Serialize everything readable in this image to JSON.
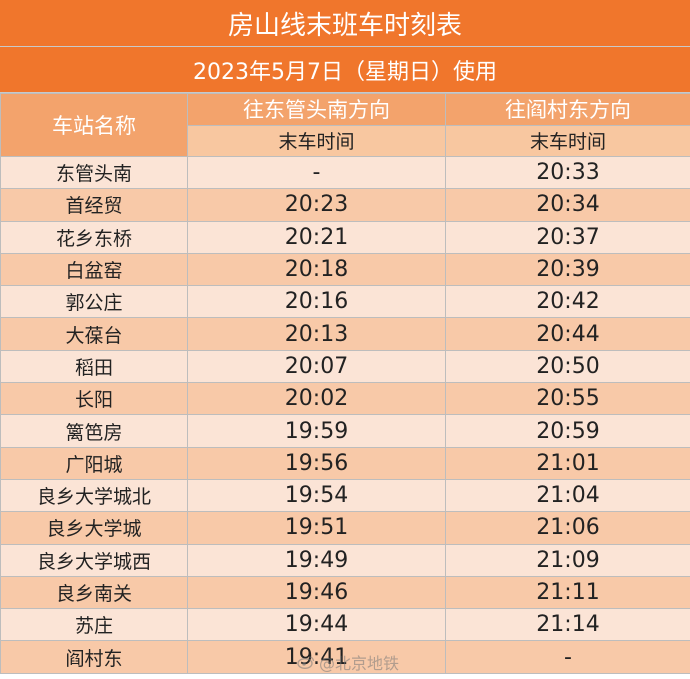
{
  "title": "房山线末班车时刻表",
  "subtitle": "2023年5月7日（星期日）使用",
  "header": {
    "station_col": "车站名称",
    "dir1": "往东管头南方向",
    "dir2": "往阎村东方向",
    "sub1": "末车时间",
    "sub2": "末车时间"
  },
  "rows": [
    {
      "station": "东管头南",
      "t1": "-",
      "t2": "20:33"
    },
    {
      "station": "首经贸",
      "t1": "20:23",
      "t2": "20:34"
    },
    {
      "station": "花乡东桥",
      "t1": "20:21",
      "t2": "20:37"
    },
    {
      "station": "白盆窑",
      "t1": "20:18",
      "t2": "20:39"
    },
    {
      "station": "郭公庄",
      "t1": "20:16",
      "t2": "20:42"
    },
    {
      "station": "大葆台",
      "t1": "20:13",
      "t2": "20:44"
    },
    {
      "station": "稻田",
      "t1": "20:07",
      "t2": "20:50"
    },
    {
      "station": "长阳",
      "t1": "20:02",
      "t2": "20:55"
    },
    {
      "station": "篱笆房",
      "t1": "19:59",
      "t2": "20:59"
    },
    {
      "station": "广阳城",
      "t1": "19:56",
      "t2": "21:01"
    },
    {
      "station": "良乡大学城北",
      "t1": "19:54",
      "t2": "21:04"
    },
    {
      "station": "良乡大学城",
      "t1": "19:51",
      "t2": "21:06"
    },
    {
      "station": "良乡大学城西",
      "t1": "19:49",
      "t2": "21:09"
    },
    {
      "station": "良乡南关",
      "t1": "19:46",
      "t2": "21:11"
    },
    {
      "station": "苏庄",
      "t1": "19:44",
      "t2": "21:14"
    },
    {
      "station": "阎村东",
      "t1": "19:41",
      "t2": "-"
    }
  ],
  "watermark": "@北京地铁",
  "colors": {
    "title_bg": "#f0762c",
    "header_bg": "#f3a36c",
    "subheader_bg": "#f8c7a0",
    "row_light": "#fbe4d6",
    "row_dark": "#f8c9a8"
  }
}
